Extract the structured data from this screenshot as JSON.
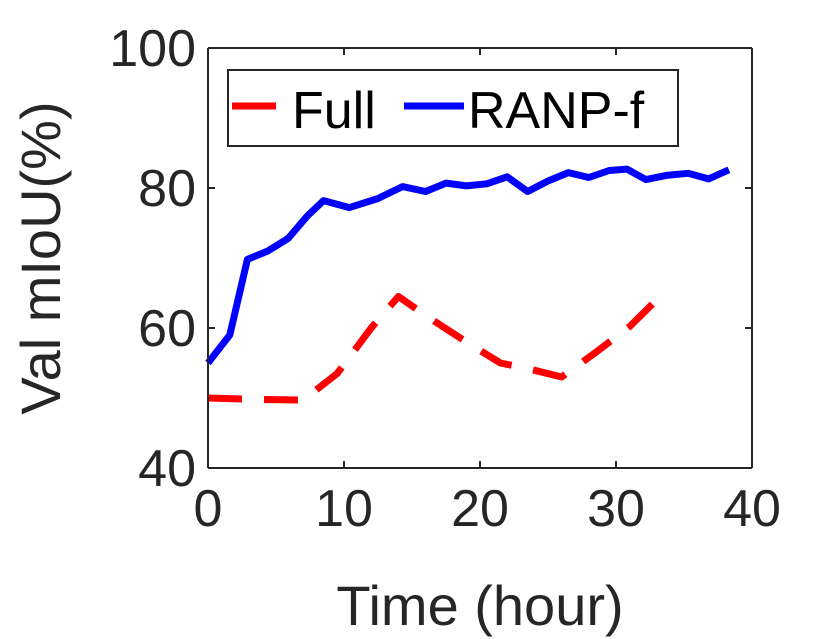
{
  "chart_data": {
    "type": "line",
    "title": "",
    "xlabel": "Time (hour)",
    "ylabel": "Val mIoU(%)",
    "xlim": [
      0,
      40
    ],
    "ylim": [
      40,
      100
    ],
    "xticks": [
      0,
      10,
      20,
      30,
      40
    ],
    "yticks": [
      40,
      60,
      80,
      100
    ],
    "grid": false,
    "legend": {
      "placement": "top-left",
      "orientation": "horizontal"
    },
    "series": [
      {
        "name": "Full",
        "color": "#ff0000",
        "style": "dashed",
        "x": [
          0,
          3.5,
          7,
          9.5,
          12,
          14,
          16,
          19,
          21.5,
          23.5,
          26,
          28.5,
          31,
          33.5
        ],
        "y": [
          50,
          49.8,
          49.7,
          53.5,
          60,
          64.5,
          61.8,
          58,
          55,
          54.2,
          53,
          56.5,
          60.2,
          65
        ]
      },
      {
        "name": "RANP-f",
        "color": "#0000ff",
        "style": "solid",
        "x": [
          0,
          1.6,
          2.9,
          4.4,
          5.9,
          7.3,
          8.5,
          10.4,
          12.5,
          14.3,
          16,
          17.5,
          19,
          20.5,
          22,
          23.5,
          25,
          26.5,
          28,
          29.5,
          30.8,
          32.2,
          33.7,
          35.3,
          36.8,
          38.3
        ],
        "y": [
          55,
          59,
          69.8,
          71,
          72.8,
          76,
          78.2,
          77.2,
          78.5,
          80.2,
          79.5,
          80.7,
          80.3,
          80.6,
          81.6,
          79.5,
          81,
          82.2,
          81.5,
          82.5,
          82.7,
          81.2,
          81.8,
          82.1,
          81.3,
          82.6
        ]
      }
    ]
  }
}
